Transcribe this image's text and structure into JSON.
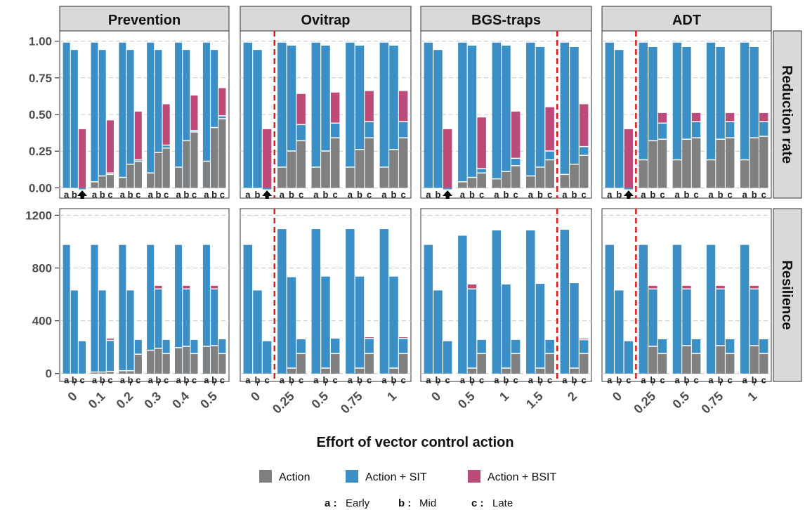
{
  "chart_data": {
    "type": "bar",
    "colors": {
      "action": "#808080",
      "action_sit": "#3a8fc6",
      "action_bsit": "#bd4b7a",
      "threshold": "#e31a1c",
      "strip": "#d9d9d9"
    },
    "facets": [
      {
        "name": "Prevention",
        "efforts": [
          "0",
          "0.1",
          "0.2",
          "0.3",
          "0.4",
          "0.5"
        ],
        "arrow_after_group": 0,
        "threshold_after_group": null
      },
      {
        "name": "Ovitrap",
        "efforts": [
          "0",
          "0.25",
          "0.5",
          "0.75",
          "1"
        ],
        "arrow_after_group": 0,
        "threshold_after_group": 0
      },
      {
        "name": "BGS-traps",
        "efforts": [
          "0",
          "0.5",
          "1",
          "1.5",
          "2"
        ],
        "arrow_after_group": 0,
        "threshold_after_group": 3
      },
      {
        "name": "ADT",
        "efforts": [
          "0",
          "0.25",
          "0.5",
          "0.75",
          "1"
        ],
        "arrow_after_group": 0,
        "threshold_after_group": 0
      }
    ],
    "rows": [
      {
        "name": "Reduction rate",
        "ylim": [
          -0.07,
          1.07
        ],
        "ticks": [
          0,
          0.25,
          0.5,
          0.75,
          1
        ],
        "tick_labels": [
          "0.00",
          "0.25",
          "0.50",
          "0.75",
          "1.00"
        ]
      },
      {
        "name": "Resilience",
        "ylim": [
          -60,
          1250
        ],
        "ticks": [
          0,
          400,
          800,
          1200
        ],
        "tick_labels": [
          "0",
          "400",
          "800",
          "1200"
        ]
      }
    ],
    "bar_letters": [
      "a",
      "b",
      "c"
    ],
    "series_order": [
      "action",
      "action_sit",
      "action_bsit"
    ],
    "values": {
      "Reduction rate": {
        "Prevention": [
          [
            [
              0,
              0.99,
              null
            ],
            [
              0,
              0.94,
              null
            ],
            [
              0,
              -0.01,
              0.4
            ]
          ],
          [
            [
              0.04,
              0.99,
              null
            ],
            [
              0.08,
              0.94,
              null
            ],
            [
              0.09,
              0.1,
              0.46
            ]
          ],
          [
            [
              0.07,
              0.99,
              null
            ],
            [
              0.16,
              0.94,
              null
            ],
            [
              0.18,
              0.19,
              0.52
            ]
          ],
          [
            [
              0.1,
              0.99,
              null
            ],
            [
              0.24,
              0.94,
              null
            ],
            [
              0.27,
              0.29,
              0.57
            ]
          ],
          [
            [
              0.14,
              0.99,
              null
            ],
            [
              0.32,
              0.94,
              null
            ],
            [
              0.38,
              0.39,
              0.63
            ]
          ],
          [
            [
              0.18,
              0.99,
              null
            ],
            [
              0.41,
              0.94,
              null
            ],
            [
              0.47,
              0.49,
              0.68
            ]
          ]
        ],
        "Ovitrap": [
          [
            [
              0,
              0.99,
              null
            ],
            [
              0,
              0.94,
              null
            ],
            [
              0,
              -0.01,
              0.4
            ]
          ],
          [
            [
              0.14,
              0.99,
              null
            ],
            [
              0.25,
              0.97,
              null
            ],
            [
              0.32,
              0.43,
              0.64
            ]
          ],
          [
            [
              0.14,
              0.99,
              null
            ],
            [
              0.25,
              0.97,
              null
            ],
            [
              0.34,
              0.44,
              0.65
            ]
          ],
          [
            [
              0.14,
              0.99,
              null
            ],
            [
              0.26,
              0.97,
              null
            ],
            [
              0.34,
              0.45,
              0.66
            ]
          ],
          [
            [
              0.14,
              0.99,
              null
            ],
            [
              0.26,
              0.97,
              null
            ],
            [
              0.34,
              0.45,
              0.66
            ]
          ]
        ],
        "BGS-traps": [
          [
            [
              0,
              0.99,
              null
            ],
            [
              0,
              0.94,
              null
            ],
            [
              0,
              -0.01,
              0.4
            ]
          ],
          [
            [
              0.04,
              0.99,
              null
            ],
            [
              0.07,
              0.97,
              null
            ],
            [
              0.1,
              0.13,
              0.48
            ]
          ],
          [
            [
              0.06,
              0.99,
              null
            ],
            [
              0.11,
              0.97,
              null
            ],
            [
              0.15,
              0.2,
              0.52
            ]
          ],
          [
            [
              0.08,
              0.99,
              null
            ],
            [
              0.14,
              0.96,
              null
            ],
            [
              0.19,
              0.25,
              0.55
            ]
          ],
          [
            [
              0.09,
              0.99,
              null
            ],
            [
              0.16,
              0.96,
              null
            ],
            [
              0.22,
              0.28,
              0.57
            ]
          ]
        ],
        "ADT": [
          [
            [
              0,
              0.99,
              null
            ],
            [
              0,
              0.94,
              null
            ],
            [
              0,
              -0.01,
              0.4
            ]
          ],
          [
            [
              0.19,
              0.99,
              null
            ],
            [
              0.32,
              0.96,
              null
            ],
            [
              0.33,
              0.44,
              0.51
            ]
          ],
          [
            [
              0.19,
              0.99,
              null
            ],
            [
              0.33,
              0.96,
              null
            ],
            [
              0.34,
              0.45,
              0.51
            ]
          ],
          [
            [
              0.19,
              0.99,
              null
            ],
            [
              0.33,
              0.96,
              null
            ],
            [
              0.34,
              0.45,
              0.51
            ]
          ],
          [
            [
              0.19,
              0.99,
              null
            ],
            [
              0.34,
              0.96,
              null
            ],
            [
              0.35,
              0.45,
              0.51
            ]
          ]
        ]
      },
      "Resilience": {
        "Prevention": [
          [
            [
              0,
              975,
              null
            ],
            [
              0,
              630,
              null
            ],
            [
              0,
              245,
              null
            ]
          ],
          [
            [
              10,
              975,
              null
            ],
            [
              10,
              630,
              null
            ],
            [
              15,
              250,
              265
            ]
          ],
          [
            [
              20,
              975,
              null
            ],
            [
              20,
              630,
              null
            ],
            [
              145,
              255,
              null
            ]
          ],
          [
            [
              175,
              975,
              null
            ],
            [
              190,
              640,
              665
            ],
            [
              150,
              255,
              null
            ]
          ],
          [
            [
              195,
              975,
              null
            ],
            [
              205,
              640,
              665
            ],
            [
              150,
              255,
              null
            ]
          ],
          [
            [
              205,
              975,
              null
            ],
            [
              210,
              640,
              665
            ],
            [
              150,
              260,
              null
            ]
          ]
        ],
        "Ovitrap": [
          [
            [
              0,
              975,
              null
            ],
            [
              0,
              630,
              null
            ],
            [
              0,
              245,
              null
            ]
          ],
          [
            [
              0,
              1095,
              null
            ],
            [
              40,
              730,
              null
            ],
            [
              150,
              260,
              null
            ]
          ],
          [
            [
              0,
              1095,
              null
            ],
            [
              40,
              735,
              null
            ],
            [
              150,
              265,
              null
            ]
          ],
          [
            [
              0,
              1095,
              null
            ],
            [
              40,
              735,
              null
            ],
            [
              150,
              265,
              275
            ]
          ],
          [
            [
              0,
              1095,
              null
            ],
            [
              40,
              735,
              null
            ],
            [
              150,
              265,
              275
            ]
          ]
        ],
        "BGS-traps": [
          [
            [
              0,
              975,
              null
            ],
            [
              0,
              630,
              null
            ],
            [
              0,
              245,
              null
            ]
          ],
          [
            [
              0,
              1045,
              null
            ],
            [
              40,
              640,
              675
            ],
            [
              150,
              255,
              null
            ]
          ],
          [
            [
              0,
              1085,
              null
            ],
            [
              40,
              675,
              null
            ],
            [
              150,
              255,
              null
            ]
          ],
          [
            [
              0,
              1085,
              null
            ],
            [
              40,
              680,
              null
            ],
            [
              150,
              255,
              null
            ]
          ],
          [
            [
              0,
              1090,
              null
            ],
            [
              40,
              685,
              null
            ],
            [
              150,
              255,
              265
            ]
          ]
        ],
        "ADT": [
          [
            [
              0,
              975,
              null
            ],
            [
              0,
              630,
              null
            ],
            [
              0,
              245,
              null
            ]
          ],
          [
            [
              0,
              975,
              null
            ],
            [
              205,
              640,
              665
            ],
            [
              150,
              260,
              null
            ]
          ],
          [
            [
              0,
              975,
              null
            ],
            [
              210,
              640,
              665
            ],
            [
              150,
              260,
              null
            ]
          ],
          [
            [
              0,
              975,
              null
            ],
            [
              210,
              640,
              665
            ],
            [
              150,
              260,
              null
            ]
          ],
          [
            [
              0,
              975,
              null
            ],
            [
              210,
              640,
              665
            ],
            [
              150,
              260,
              null
            ]
          ]
        ]
      }
    },
    "xlabel": "Effort of vector control action",
    "legend": [
      {
        "key": "action",
        "label": "Action"
      },
      {
        "key": "action_sit",
        "label": "Action + SIT"
      },
      {
        "key": "action_bsit",
        "label": "Action + BSIT"
      }
    ],
    "timing_note": [
      {
        "key": "a :",
        "label": "Early"
      },
      {
        "key": "b :",
        "label": "Mid"
      },
      {
        "key": "c :",
        "label": "Late"
      }
    ]
  }
}
